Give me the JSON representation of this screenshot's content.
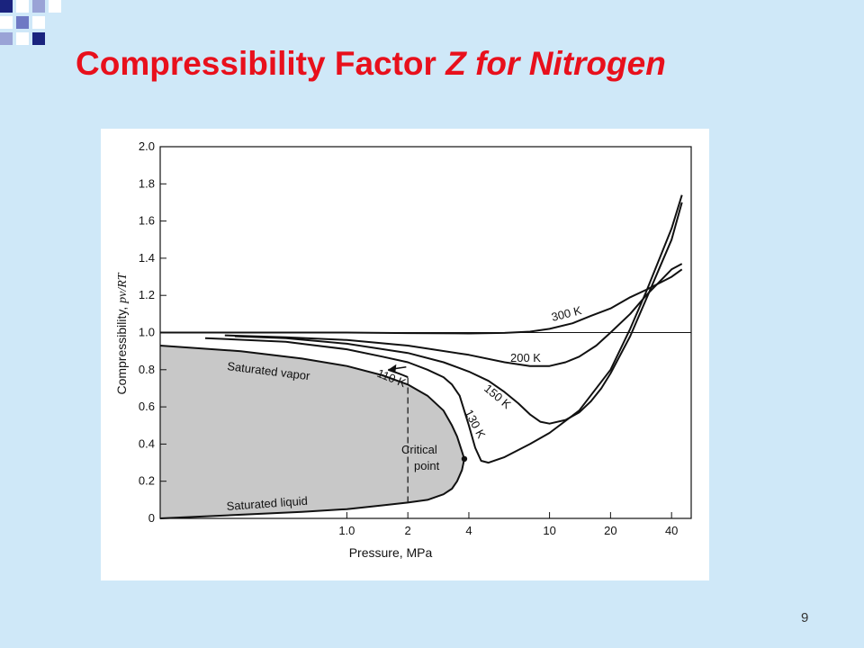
{
  "slide": {
    "title_main": "Compressibility Factor ",
    "title_var": "Z",
    "title_rest": "  for Nitrogen",
    "title_color": "#e8101c",
    "background_color": "#cfe8f8",
    "page_number": "9",
    "logo_icon": "blue-squares-logo-icon"
  },
  "chart_data": {
    "type": "line",
    "title": "",
    "xlabel": "Pressure, MPa",
    "ylabel": "Compressibility, ",
    "ylabel_italic": "pv/RT",
    "x_scale": "log",
    "xlim": [
      0.12,
      50
    ],
    "ylim": [
      0,
      2.0
    ],
    "grid": false,
    "x_ticks": [
      {
        "value": 1.0,
        "label": "1.0"
      },
      {
        "value": 2,
        "label": "2"
      },
      {
        "value": 4,
        "label": "4"
      },
      {
        "value": 10,
        "label": "10"
      },
      {
        "value": 20,
        "label": "20"
      },
      {
        "value": 40,
        "label": "40"
      }
    ],
    "y_ticks": [
      {
        "value": 0,
        "label": "0"
      },
      {
        "value": 0.2,
        "label": "0.2"
      },
      {
        "value": 0.4,
        "label": "0.4"
      },
      {
        "value": 0.6,
        "label": "0.6"
      },
      {
        "value": 0.8,
        "label": "0.8"
      },
      {
        "value": 1.0,
        "label": "1.0"
      },
      {
        "value": 1.2,
        "label": "1.2"
      },
      {
        "value": 1.4,
        "label": "1.4"
      },
      {
        "value": 1.6,
        "label": "1.6"
      },
      {
        "value": 1.8,
        "label": "1.8"
      },
      {
        "value": 2.0,
        "label": "2.0"
      }
    ],
    "reference_line": {
      "y": 1.0
    },
    "series": [
      {
        "name": "300 K",
        "x": [
          0.12,
          0.5,
          1,
          2,
          4,
          6,
          8,
          10,
          13,
          16,
          20,
          25,
          30,
          40,
          45
        ],
        "y": [
          1.0,
          1.0,
          1.0,
          0.997,
          0.995,
          0.998,
          1.005,
          1.02,
          1.05,
          1.09,
          1.13,
          1.19,
          1.23,
          1.3,
          1.34
        ]
      },
      {
        "name": "200 K",
        "x": [
          0.25,
          0.5,
          1,
          2,
          4,
          6,
          8,
          10,
          12,
          14,
          17,
          20,
          25,
          30,
          40,
          45
        ],
        "y": [
          0.985,
          0.975,
          0.96,
          0.93,
          0.88,
          0.84,
          0.82,
          0.82,
          0.84,
          0.87,
          0.93,
          1.0,
          1.1,
          1.2,
          1.34,
          1.37
        ]
      },
      {
        "name": "150 K",
        "x": [
          0.28,
          0.5,
          1,
          2,
          3,
          4,
          5,
          6,
          7,
          8,
          9,
          10,
          12,
          14,
          16,
          18,
          20,
          25,
          30,
          40,
          45
        ],
        "y": [
          0.98,
          0.97,
          0.94,
          0.89,
          0.84,
          0.79,
          0.74,
          0.68,
          0.62,
          0.56,
          0.52,
          0.51,
          0.53,
          0.57,
          0.63,
          0.7,
          0.78,
          0.98,
          1.18,
          1.5,
          1.7
        ]
      },
      {
        "name": "130 K",
        "x": [
          0.2,
          0.5,
          1,
          1.5,
          2,
          2.5,
          3,
          3.3,
          3.6,
          4,
          4.3,
          4.6,
          5,
          6,
          8,
          10,
          14,
          20,
          25,
          30,
          40,
          45
        ],
        "y": [
          0.97,
          0.95,
          0.91,
          0.87,
          0.84,
          0.8,
          0.76,
          0.72,
          0.66,
          0.5,
          0.38,
          0.31,
          0.3,
          0.33,
          0.4,
          0.46,
          0.58,
          0.8,
          1.02,
          1.22,
          1.56,
          1.74
        ]
      },
      {
        "name": "110 K",
        "x": [
          1.6,
          1.7,
          1.8,
          1.9,
          2.0
        ],
        "y": [
          0.8,
          0.79,
          0.78,
          0.77,
          0.76
        ]
      },
      {
        "name": "Saturated vapor",
        "x": [
          0.12,
          0.3,
          0.6,
          1.0,
          1.5,
          2.0,
          2.5,
          3.0,
          3.3,
          3.5,
          3.7,
          3.8
        ],
        "y": [
          0.93,
          0.9,
          0.86,
          0.82,
          0.77,
          0.72,
          0.66,
          0.58,
          0.5,
          0.44,
          0.36,
          0.32
        ]
      },
      {
        "name": "Saturated liquid",
        "x": [
          0.12,
          0.3,
          0.6,
          1.0,
          1.5,
          2.0,
          2.5,
          3.0,
          3.3,
          3.5,
          3.7,
          3.8
        ],
        "y": [
          0.0,
          0.02,
          0.035,
          0.05,
          0.07,
          0.085,
          0.1,
          0.13,
          0.16,
          0.2,
          0.26,
          0.32
        ]
      }
    ],
    "critical_point": {
      "x": 3.8,
      "y": 0.32,
      "label_line1": "Critical",
      "label_line2": "point"
    },
    "dashed_line": {
      "x": 2.0,
      "y_from": 0.085,
      "y_to": 0.76
    },
    "labels": {
      "t300": "300 K",
      "t200": "200 K",
      "t150": "150 K",
      "t130": "130 K",
      "t110": "110 K",
      "sat_vapor": "Saturated vapor",
      "sat_liquid": "Saturated liquid"
    },
    "two_phase_fill_color": "#c8c8c8"
  }
}
